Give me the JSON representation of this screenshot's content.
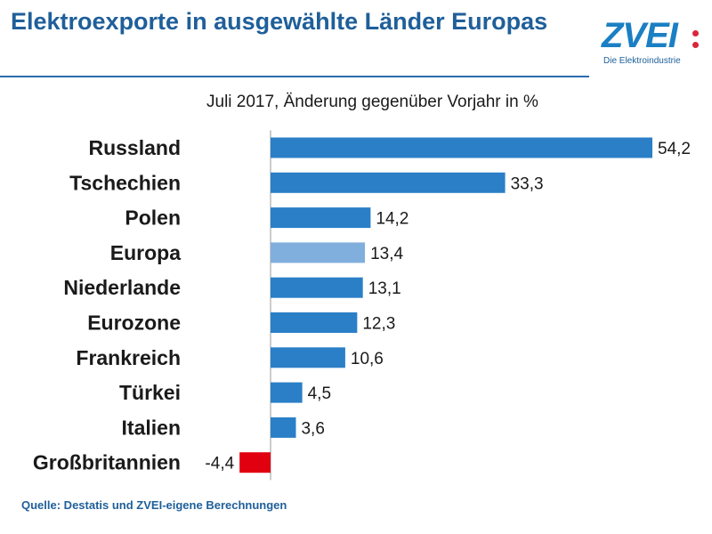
{
  "header": {
    "title": "Elektroexporte in ausgewählte Länder Europas"
  },
  "logo": {
    "word": "ZVEI",
    "tagline": "Die Elektroindustrie"
  },
  "source": "Quelle: Destatis und ZVEI-eigene Berechnungen",
  "colors": {
    "title": "#1f5f9a",
    "bar_default": "#2a7fc7",
    "bar_highlight": "#80afdd",
    "bar_negative": "#e0000f"
  },
  "chart_data": {
    "type": "bar",
    "orientation": "horizontal",
    "title": "Juli 2017, Änderung gegenüber Vorjahr in %",
    "xlabel": "",
    "ylabel": "",
    "xlim": [
      -4.4,
      54.2
    ],
    "grid": false,
    "legend": "none",
    "categories": [
      "Russland",
      "Tschechien",
      "Polen",
      "Europa",
      "Niederlande",
      "Eurozone",
      "Frankreich",
      "Türkei",
      "Italien",
      "Großbritannien"
    ],
    "values": [
      54.2,
      33.3,
      14.2,
      13.4,
      13.1,
      12.3,
      10.6,
      4.5,
      3.6,
      -4.4
    ],
    "value_labels": [
      "54,2",
      "33,3",
      "14,2",
      "13,4",
      "13,1",
      "12,3",
      "10,6",
      "4,5",
      "3,6",
      "-4,4"
    ],
    "highlight": [
      "Europa"
    ]
  }
}
